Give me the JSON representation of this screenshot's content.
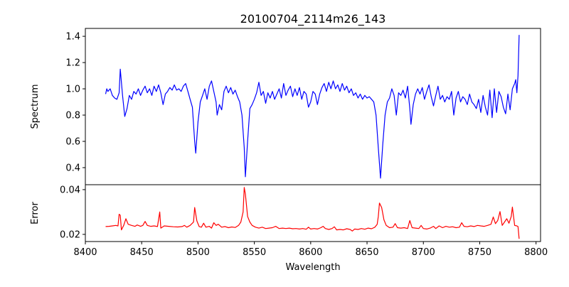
{
  "chart_data": [
    {
      "type": "line",
      "title": "20100704_2114m26_143",
      "xlabel": "",
      "ylabel": "Spectrum",
      "xlim": [
        8400,
        8804
      ],
      "ylim": [
        0.27,
        1.46
      ],
      "yticks": [
        0.4,
        0.6,
        0.8,
        1.0,
        1.2,
        1.4
      ],
      "ytick_labels": [
        "0.4",
        "0.6",
        "0.8",
        "1.0",
        "1.2",
        "1.4"
      ],
      "color": "#0000ff",
      "points": [
        [
          8418,
          0.96
        ],
        [
          8419,
          1.0
        ],
        [
          8420,
          0.98
        ],
        [
          8422,
          1.0
        ],
        [
          8424,
          0.95
        ],
        [
          8426,
          0.93
        ],
        [
          8428,
          0.92
        ],
        [
          8430,
          0.97
        ],
        [
          8431,
          1.15
        ],
        [
          8433,
          0.95
        ],
        [
          8435,
          0.79
        ],
        [
          8437,
          0.85
        ],
        [
          8439,
          0.95
        ],
        [
          8441,
          0.92
        ],
        [
          8443,
          0.98
        ],
        [
          8445,
          0.96
        ],
        [
          8447,
          1.0
        ],
        [
          8449,
          0.95
        ],
        [
          8451,
          0.99
        ],
        [
          8453,
          1.02
        ],
        [
          8455,
          0.97
        ],
        [
          8457,
          1.0
        ],
        [
          8459,
          0.95
        ],
        [
          8461,
          1.02
        ],
        [
          8463,
          0.98
        ],
        [
          8465,
          1.03
        ],
        [
          8467,
          0.97
        ],
        [
          8469,
          0.88
        ],
        [
          8471,
          0.96
        ],
        [
          8473,
          0.98
        ],
        [
          8475,
          1.01
        ],
        [
          8477,
          0.99
        ],
        [
          8479,
          1.03
        ],
        [
          8481,
          0.99
        ],
        [
          8483,
          1.0
        ],
        [
          8485,
          0.98
        ],
        [
          8487,
          1.02
        ],
        [
          8489,
          1.04
        ],
        [
          8491,
          0.98
        ],
        [
          8493,
          0.92
        ],
        [
          8495,
          0.86
        ],
        [
          8497,
          0.6
        ],
        [
          8498,
          0.51
        ],
        [
          8500,
          0.75
        ],
        [
          8502,
          0.9
        ],
        [
          8504,
          0.95
        ],
        [
          8506,
          1.0
        ],
        [
          8508,
          0.92
        ],
        [
          8510,
          1.02
        ],
        [
          8512,
          1.06
        ],
        [
          8514,
          0.98
        ],
        [
          8516,
          0.9
        ],
        [
          8517,
          0.8
        ],
        [
          8519,
          0.88
        ],
        [
          8521,
          0.84
        ],
        [
          8523,
          0.98
        ],
        [
          8525,
          1.02
        ],
        [
          8527,
          0.97
        ],
        [
          8529,
          1.01
        ],
        [
          8531,
          0.96
        ],
        [
          8533,
          0.99
        ],
        [
          8535,
          0.94
        ],
        [
          8537,
          0.9
        ],
        [
          8539,
          0.8
        ],
        [
          8541,
          0.55
        ],
        [
          8542,
          0.33
        ],
        [
          8544,
          0.6
        ],
        [
          8546,
          0.85
        ],
        [
          8548,
          0.88
        ],
        [
          8550,
          0.92
        ],
        [
          8552,
          0.97
        ],
        [
          8554,
          1.05
        ],
        [
          8556,
          0.95
        ],
        [
          8558,
          0.98
        ],
        [
          8560,
          0.89
        ],
        [
          8562,
          0.97
        ],
        [
          8564,
          0.93
        ],
        [
          8566,
          0.98
        ],
        [
          8568,
          0.92
        ],
        [
          8570,
          0.96
        ],
        [
          8572,
          1.0
        ],
        [
          8574,
          0.93
        ],
        [
          8576,
          1.04
        ],
        [
          8578,
          0.95
        ],
        [
          8580,
          0.99
        ],
        [
          8582,
          1.02
        ],
        [
          8584,
          0.94
        ],
        [
          8586,
          1.0
        ],
        [
          8588,
          0.95
        ],
        [
          8590,
          1.01
        ],
        [
          8592,
          0.92
        ],
        [
          8594,
          0.98
        ],
        [
          8596,
          0.96
        ],
        [
          8598,
          0.86
        ],
        [
          8600,
          0.9
        ],
        [
          8602,
          0.98
        ],
        [
          8604,
          0.96
        ],
        [
          8606,
          0.88
        ],
        [
          8608,
          0.96
        ],
        [
          8610,
          1.01
        ],
        [
          8612,
          1.04
        ],
        [
          8614,
          0.98
        ],
        [
          8616,
          1.05
        ],
        [
          8618,
          1.0
        ],
        [
          8620,
          1.06
        ],
        [
          8622,
          1.0
        ],
        [
          8624,
          1.03
        ],
        [
          8626,
          0.98
        ],
        [
          8628,
          1.04
        ],
        [
          8630,
          0.99
        ],
        [
          8632,
          1.02
        ],
        [
          8634,
          0.97
        ],
        [
          8636,
          1.0
        ],
        [
          8638,
          0.95
        ],
        [
          8640,
          0.97
        ],
        [
          8642,
          0.93
        ],
        [
          8644,
          0.96
        ],
        [
          8646,
          0.92
        ],
        [
          8648,
          0.95
        ],
        [
          8650,
          0.93
        ],
        [
          8652,
          0.94
        ],
        [
          8654,
          0.92
        ],
        [
          8656,
          0.9
        ],
        [
          8658,
          0.8
        ],
        [
          8660,
          0.55
        ],
        [
          8662,
          0.32
        ],
        [
          8664,
          0.58
        ],
        [
          8666,
          0.8
        ],
        [
          8668,
          0.9
        ],
        [
          8670,
          0.93
        ],
        [
          8672,
          1.0
        ],
        [
          8674,
          0.95
        ],
        [
          8676,
          0.8
        ],
        [
          8678,
          0.97
        ],
        [
          8680,
          0.95
        ],
        [
          8682,
          0.99
        ],
        [
          8684,
          0.93
        ],
        [
          8686,
          1.02
        ],
        [
          8688,
          0.85
        ],
        [
          8689,
          0.73
        ],
        [
          8691,
          0.88
        ],
        [
          8693,
          0.96
        ],
        [
          8695,
          1.0
        ],
        [
          8697,
          0.96
        ],
        [
          8699,
          1.01
        ],
        [
          8701,
          0.92
        ],
        [
          8703,
          0.98
        ],
        [
          8705,
          1.03
        ],
        [
          8707,
          0.94
        ],
        [
          8709,
          0.87
        ],
        [
          8711,
          0.95
        ],
        [
          8713,
          1.02
        ],
        [
          8715,
          0.92
        ],
        [
          8717,
          0.95
        ],
        [
          8719,
          0.9
        ],
        [
          8721,
          0.94
        ],
        [
          8723,
          0.92
        ],
        [
          8725,
          0.98
        ],
        [
          8727,
          0.8
        ],
        [
          8729,
          0.93
        ],
        [
          8731,
          0.98
        ],
        [
          8733,
          0.9
        ],
        [
          8735,
          0.94
        ],
        [
          8737,
          0.92
        ],
        [
          8739,
          0.88
        ],
        [
          8741,
          0.96
        ],
        [
          8743,
          0.9
        ],
        [
          8745,
          0.88
        ],
        [
          8747,
          0.85
        ],
        [
          8749,
          0.92
        ],
        [
          8751,
          0.82
        ],
        [
          8753,
          0.95
        ],
        [
          8755,
          0.86
        ],
        [
          8757,
          0.8
        ],
        [
          8759,
          0.99
        ],
        [
          8761,
          0.78
        ],
        [
          8763,
          1.0
        ],
        [
          8765,
          0.82
        ],
        [
          8767,
          0.98
        ],
        [
          8769,
          0.94
        ],
        [
          8771,
          0.86
        ],
        [
          8773,
          0.81
        ],
        [
          8775,
          0.96
        ],
        [
          8777,
          0.84
        ],
        [
          8779,
          1.0
        ],
        [
          8781,
          1.04
        ],
        [
          8782,
          1.07
        ],
        [
          8783,
          0.97
        ],
        [
          8784,
          1.1
        ],
        [
          8785,
          1.41
        ]
      ]
    },
    {
      "type": "line",
      "title": "",
      "xlabel": "Wavelength",
      "ylabel": "Error",
      "xlim": [
        8400,
        8804
      ],
      "ylim": [
        0.0168,
        0.0422
      ],
      "xticks": [
        8400,
        8450,
        8500,
        8550,
        8600,
        8650,
        8700,
        8750,
        8800
      ],
      "xtick_labels": [
        "8400",
        "8450",
        "8500",
        "8550",
        "8600",
        "8650",
        "8700",
        "8750",
        "8800"
      ],
      "yticks": [
        0.02,
        0.04
      ],
      "ytick_labels": [
        "0.02",
        "0.04"
      ],
      "color": "#ff0000",
      "points": [
        [
          8418,
          0.0235
        ],
        [
          8421,
          0.0236
        ],
        [
          8424,
          0.0238
        ],
        [
          8427,
          0.024
        ],
        [
          8429,
          0.0238
        ],
        [
          8430,
          0.029
        ],
        [
          8431,
          0.0285
        ],
        [
          8432,
          0.022
        ],
        [
          8434,
          0.024
        ],
        [
          8436,
          0.027
        ],
        [
          8438,
          0.0245
        ],
        [
          8441,
          0.024
        ],
        [
          8444,
          0.0236
        ],
        [
          8446,
          0.0242
        ],
        [
          8449,
          0.0236
        ],
        [
          8451,
          0.024
        ],
        [
          8453,
          0.0258
        ],
        [
          8455,
          0.024
        ],
        [
          8458,
          0.0236
        ],
        [
          8461,
          0.0238
        ],
        [
          8464,
          0.0235
        ],
        [
          8466,
          0.03
        ],
        [
          8467,
          0.0228
        ],
        [
          8470,
          0.0238
        ],
        [
          8474,
          0.0236
        ],
        [
          8478,
          0.0234
        ],
        [
          8482,
          0.0233
        ],
        [
          8486,
          0.0235
        ],
        [
          8488,
          0.024
        ],
        [
          8490,
          0.0232
        ],
        [
          8493,
          0.024
        ],
        [
          8496,
          0.0255
        ],
        [
          8497,
          0.032
        ],
        [
          8499,
          0.026
        ],
        [
          8501,
          0.0235
        ],
        [
          8503,
          0.0232
        ],
        [
          8505,
          0.025
        ],
        [
          8507,
          0.0232
        ],
        [
          8510,
          0.0236
        ],
        [
          8512,
          0.0228
        ],
        [
          8514,
          0.0252
        ],
        [
          8516,
          0.024
        ],
        [
          8518,
          0.0245
        ],
        [
          8521,
          0.0232
        ],
        [
          8524,
          0.0235
        ],
        [
          8527,
          0.023
        ],
        [
          8530,
          0.0233
        ],
        [
          8533,
          0.0231
        ],
        [
          8536,
          0.024
        ],
        [
          8538,
          0.0255
        ],
        [
          8540,
          0.03
        ],
        [
          8541,
          0.041
        ],
        [
          8542,
          0.038
        ],
        [
          8544,
          0.028
        ],
        [
          8546,
          0.0255
        ],
        [
          8548,
          0.024
        ],
        [
          8551,
          0.0232
        ],
        [
          8554,
          0.0228
        ],
        [
          8557,
          0.0232
        ],
        [
          8560,
          0.0226
        ],
        [
          8563,
          0.0228
        ],
        [
          8566,
          0.023
        ],
        [
          8569,
          0.0236
        ],
        [
          8572,
          0.0226
        ],
        [
          8575,
          0.0228
        ],
        [
          8578,
          0.0226
        ],
        [
          8581,
          0.0228
        ],
        [
          8584,
          0.0225
        ],
        [
          8587,
          0.0226
        ],
        [
          8590,
          0.0224
        ],
        [
          8593,
          0.0226
        ],
        [
          8596,
          0.0223
        ],
        [
          8598,
          0.0232
        ],
        [
          8600,
          0.0224
        ],
        [
          8603,
          0.0226
        ],
        [
          8606,
          0.0224
        ],
        [
          8609,
          0.023
        ],
        [
          8611,
          0.0236
        ],
        [
          8613,
          0.0226
        ],
        [
          8616,
          0.0222
        ],
        [
          8619,
          0.0226
        ],
        [
          8621,
          0.0234
        ],
        [
          8623,
          0.022
        ],
        [
          8626,
          0.0222
        ],
        [
          8629,
          0.022
        ],
        [
          8632,
          0.0225
        ],
        [
          8635,
          0.0222
        ],
        [
          8637,
          0.0215
        ],
        [
          8639,
          0.0224
        ],
        [
          8642,
          0.0222
        ],
        [
          8645,
          0.0226
        ],
        [
          8648,
          0.0223
        ],
        [
          8651,
          0.0228
        ],
        [
          8654,
          0.0225
        ],
        [
          8657,
          0.0232
        ],
        [
          8659,
          0.0245
        ],
        [
          8660,
          0.028
        ],
        [
          8661,
          0.034
        ],
        [
          8663,
          0.032
        ],
        [
          8665,
          0.0265
        ],
        [
          8667,
          0.024
        ],
        [
          8670,
          0.023
        ],
        [
          8673,
          0.0232
        ],
        [
          8675,
          0.0248
        ],
        [
          8677,
          0.023
        ],
        [
          8680,
          0.0228
        ],
        [
          8683,
          0.023
        ],
        [
          8686,
          0.0226
        ],
        [
          8688,
          0.0262
        ],
        [
          8690,
          0.023
        ],
        [
          8693,
          0.0228
        ],
        [
          8696,
          0.0226
        ],
        [
          8698,
          0.024
        ],
        [
          8700,
          0.0226
        ],
        [
          8703,
          0.0224
        ],
        [
          8706,
          0.0228
        ],
        [
          8709,
          0.0236
        ],
        [
          8711,
          0.0226
        ],
        [
          8714,
          0.0238
        ],
        [
          8717,
          0.023
        ],
        [
          8720,
          0.0236
        ],
        [
          8723,
          0.0232
        ],
        [
          8726,
          0.0234
        ],
        [
          8729,
          0.023
        ],
        [
          8732,
          0.0232
        ],
        [
          8734,
          0.0252
        ],
        [
          8736,
          0.0236
        ],
        [
          8739,
          0.0234
        ],
        [
          8742,
          0.0238
        ],
        [
          8745,
          0.0235
        ],
        [
          8748,
          0.024
        ],
        [
          8751,
          0.0238
        ],
        [
          8754,
          0.0236
        ],
        [
          8757,
          0.024
        ],
        [
          8760,
          0.0245
        ],
        [
          8762,
          0.0278
        ],
        [
          8764,
          0.0248
        ],
        [
          8766,
          0.0262
        ],
        [
          8768,
          0.0302
        ],
        [
          8770,
          0.024
        ],
        [
          8772,
          0.0255
        ],
        [
          8774,
          0.027
        ],
        [
          8776,
          0.025
        ],
        [
          8778,
          0.028
        ],
        [
          8779,
          0.0322
        ],
        [
          8781,
          0.024
        ],
        [
          8783,
          0.0238
        ],
        [
          8784,
          0.0235
        ],
        [
          8785,
          0.018
        ]
      ]
    }
  ]
}
